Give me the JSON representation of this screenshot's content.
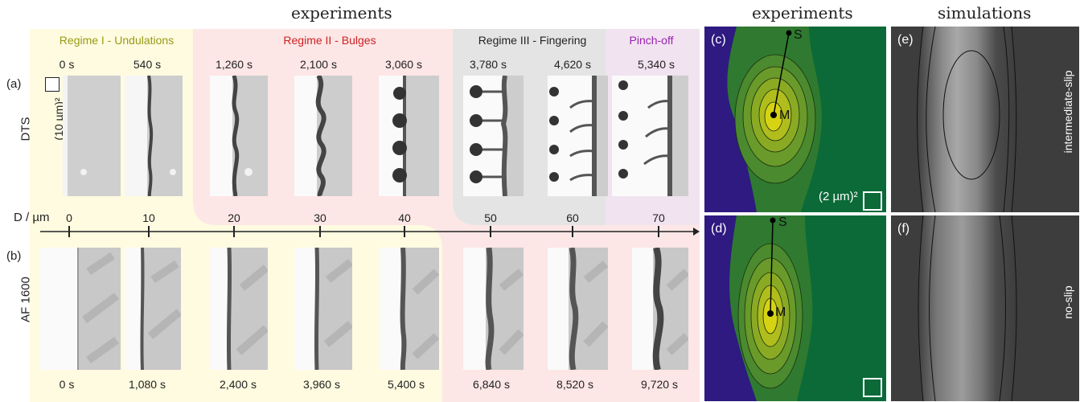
{
  "headers": {
    "experiments_left": "experiments",
    "experiments_right": "experiments",
    "simulations": "simulations"
  },
  "regimes": {
    "r1": "Regime I - Undulations",
    "r2": "Regime II - Bulges",
    "r3": "Regime III - Fingering",
    "r4": "Pinch-off"
  },
  "colors": {
    "regime1": "#fefbe0",
    "regime2": "#fde6e6",
    "regime3": "#e4e4e4",
    "regime4": "#f1e3f0",
    "r1_text": "#9a9a18",
    "r2_text": "#cc2222",
    "r3_text": "#222222",
    "r4_text": "#9a22b0",
    "sim_bg": "#3d3d3d",
    "exp_bg_navy": "#2e1a80",
    "exp_green": "#0b6a38"
  },
  "row_a": {
    "label": "(a)",
    "substrate": "DTS",
    "scale": "(10 µm)²",
    "times": [
      "0 s",
      "540 s",
      "1,260 s",
      "2,100 s",
      "3,060 s",
      "3,780 s",
      "4,620 s",
      "5,340 s"
    ]
  },
  "row_b": {
    "label": "(b)",
    "substrate": "AF 1600",
    "times": [
      "0 s",
      "1,080 s",
      "2,400 s",
      "3,960 s",
      "5,400 s",
      "6,840 s",
      "8,520 s",
      "9,720 s"
    ]
  },
  "axis": {
    "label": "D / µm",
    "ticks": [
      "0",
      "10",
      "20",
      "30",
      "40",
      "50",
      "60",
      "70"
    ]
  },
  "panels": {
    "c": {
      "label": "(c)",
      "point_s": "S",
      "point_m": "M",
      "scale": "(2 µm)²"
    },
    "d": {
      "label": "(d)",
      "point_s": "S",
      "point_m": "M"
    },
    "e": {
      "label": "(e)",
      "condition": "intermediate-slip"
    },
    "f": {
      "label": "(f)",
      "condition": "no-slip"
    }
  }
}
